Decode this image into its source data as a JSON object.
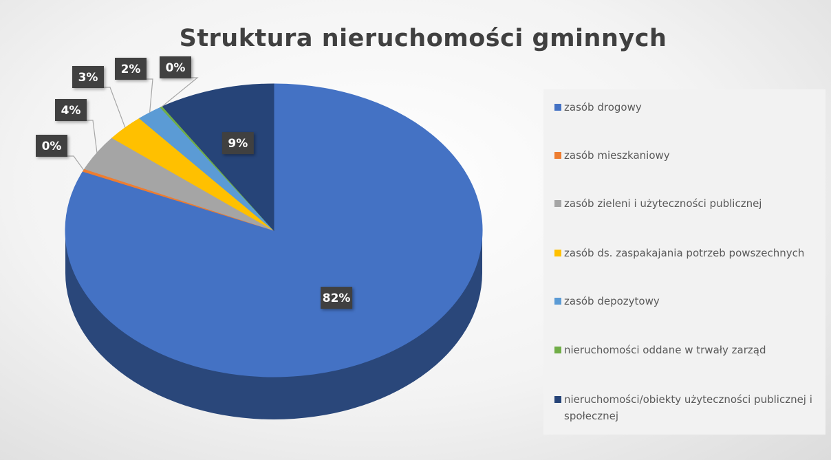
{
  "chart_data": {
    "type": "pie",
    "title": "Struktura  nieruchomości  gminnych",
    "categories": [
      "zasób drogowy",
      "zasób mieszkaniowy",
      "zasób zieleni i użyteczności publicznej",
      "zasób ds. zaspakajania potrzeb powszechnych",
      "zasób depozytowy",
      "nieruchomości oddane w trwały zarząd",
      "nieruchomości/obiekty użyteczności publicznej i społecznej"
    ],
    "values": [
      82,
      0.3,
      4,
      3,
      2,
      0.2,
      9
    ],
    "value_labels": [
      "82%",
      "0%",
      "4%",
      "3%",
      "2%",
      "0%",
      "9%"
    ],
    "colors": [
      "#4472c4",
      "#ed7d31",
      "#a5a5a5",
      "#ffc000",
      "#5b9bd5",
      "#70ad47",
      "#264478"
    ],
    "legend": "right"
  }
}
